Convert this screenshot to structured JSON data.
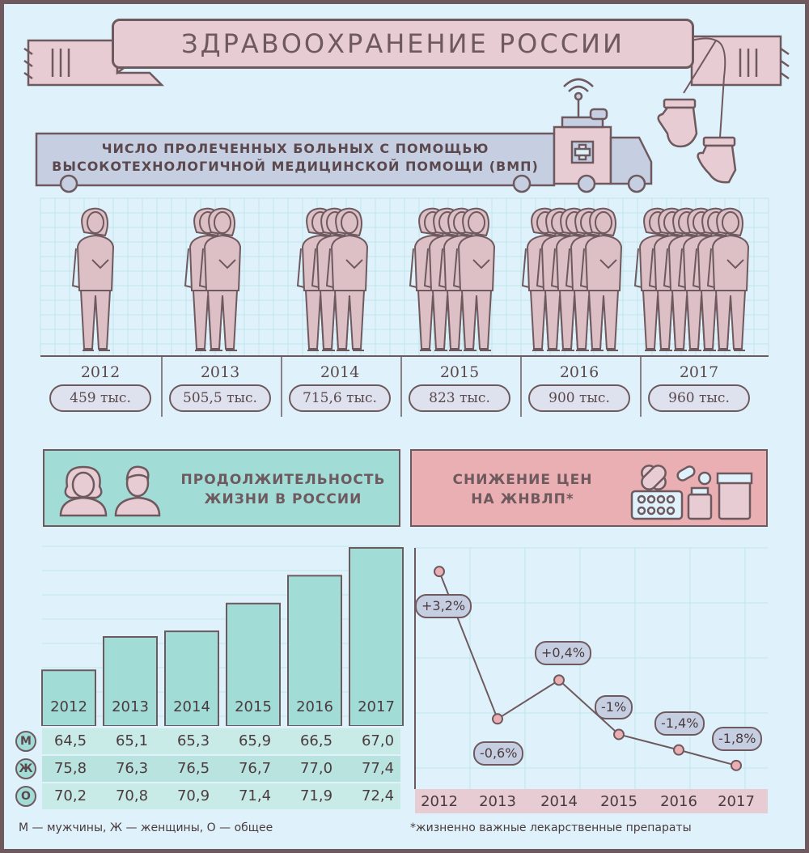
{
  "title": "ЗДРАВООХРАНЕНИЕ РОССИИ",
  "vmp": {
    "title_line1": "ЧИСЛО ПРОЛЕЧЕННЫХ БОЛЬНЫХ С ПОМОЩЬЮ",
    "title_line2": "ВЫСОКОТЕХНОЛОГИЧНОЙ МЕДИЦИНСКОЙ ПОМОЩИ (ВМП)",
    "years": [
      "2012",
      "2013",
      "2014",
      "2015",
      "2016",
      "2017"
    ],
    "values_label": [
      "459 тыс.",
      "505,5 тыс.",
      "715,6 тыс.",
      "823 тыс.",
      "900 тыс.",
      "960 тыс."
    ],
    "figures_count": [
      1,
      2,
      3,
      4,
      5,
      6
    ]
  },
  "life": {
    "title_line1": "ПРОДОЛЖИТЕЛЬНОСТЬ",
    "title_line2": "ЖИЗНИ В РОССИИ",
    "row_labels": [
      "М",
      "Ж",
      "О"
    ],
    "legend": "М — мужчины, Ж — женщины, О — общее"
  },
  "prices": {
    "title_line1": "СНИЖЕНИЕ ЦЕН",
    "title_line2": "НА ЖНВЛП*",
    "footnote": "*жизненно важные лекарственные препараты"
  },
  "colors": {
    "teal": "#a2dcd7",
    "pink": "#e9afb3",
    "figure": "#ddc0c6",
    "outline": "#6e5a5e"
  },
  "chart_data": [
    {
      "type": "table",
      "categories": [
        "2012",
        "2013",
        "2014",
        "2015",
        "2016",
        "2017"
      ],
      "series": [
        {
          "name": "М",
          "values": [
            "64,5",
            "65,1",
            "65,3",
            "65,9",
            "66,5",
            "67,0"
          ]
        },
        {
          "name": "Ж",
          "values": [
            "75,8",
            "76,3",
            "76,5",
            "76,7",
            "77,0",
            "77,4"
          ]
        },
        {
          "name": "О",
          "values": [
            "70,2",
            "70,8",
            "70,9",
            "71,4",
            "71,9",
            "72,4"
          ]
        }
      ],
      "bar_values": [
        70.2,
        70.8,
        70.9,
        71.4,
        71.9,
        72.4
      ],
      "ylim": [
        69.2,
        72.4
      ]
    },
    {
      "type": "line",
      "categories": [
        "2012",
        "2013",
        "2014",
        "2015",
        "2016",
        "2017"
      ],
      "values": [
        3.2,
        -0.6,
        0.4,
        -1,
        -1.4,
        -1.8
      ],
      "labels": [
        "+3,2%",
        "-0,6%",
        "+0,4%",
        "-1%",
        "-1,4%",
        "-1,8%"
      ]
    }
  ]
}
